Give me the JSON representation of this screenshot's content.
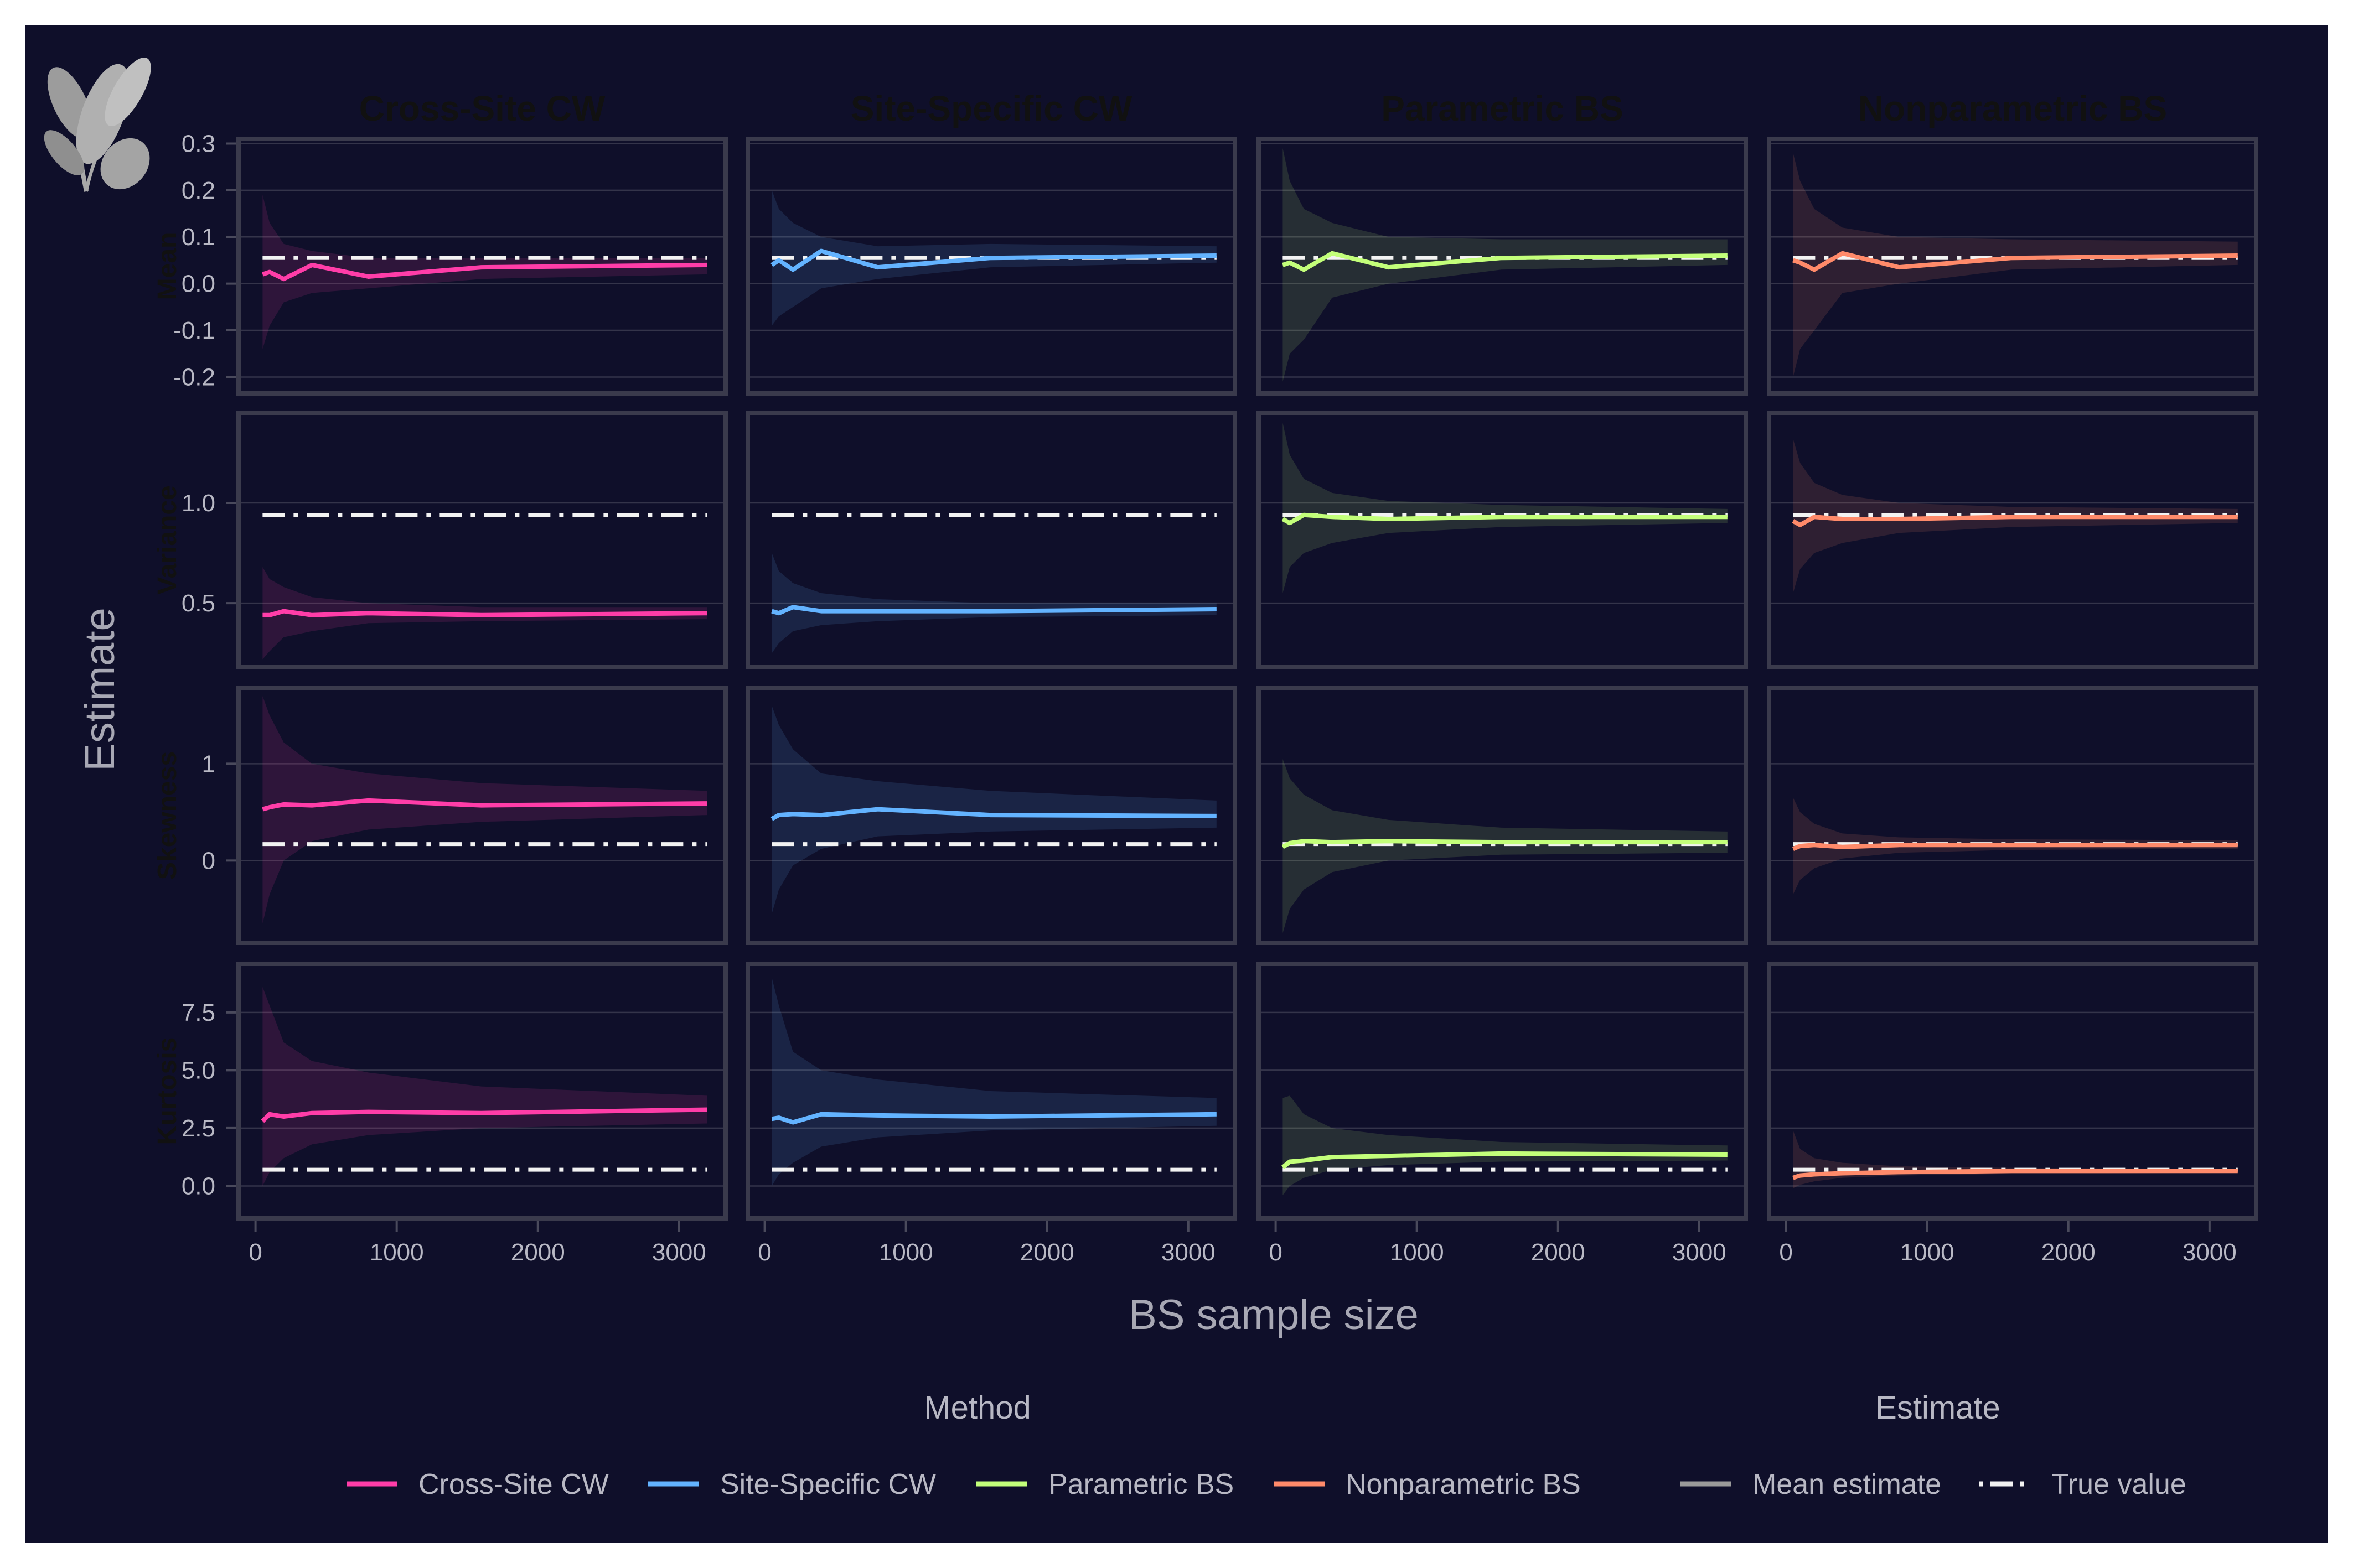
{
  "chart_data": {
    "type": "line",
    "layout": "facet-grid 4x4",
    "xlabel": "BS sample size",
    "ylabel": "Estimate",
    "x": [
      50,
      100,
      200,
      400,
      800,
      1600,
      3200
    ],
    "x_ticks": [
      0,
      1000,
      2000,
      3000
    ],
    "xlim": [
      -120,
      3330
    ],
    "columns": [
      "Cross-Site CW",
      "Site-Specific CW",
      "Parametric BS",
      "Nonparametric BS"
    ],
    "rows": [
      {
        "name": "Mean",
        "ylim": [
          -0.235,
          0.31
        ],
        "y_ticks": [
          -0.2,
          -0.1,
          0.0,
          0.1,
          0.2,
          0.3
        ],
        "y_tick_labels": [
          "-0.2",
          "-0.1",
          "0.0",
          "0.1",
          "0.2",
          "0.3"
        ],
        "true_value": 0.055,
        "series": [
          {
            "mean": [
              0.02,
              0.025,
              0.01,
              0.04,
              0.015,
              0.035,
              0.04
            ],
            "lower": [
              -0.14,
              -0.09,
              -0.04,
              -0.02,
              -0.01,
              0.01,
              0.02
            ],
            "upper": [
              0.19,
              0.13,
              0.085,
              0.07,
              0.055,
              0.055,
              0.055
            ]
          },
          {
            "mean": [
              0.04,
              0.05,
              0.03,
              0.07,
              0.035,
              0.055,
              0.06
            ],
            "lower": [
              -0.09,
              -0.07,
              -0.05,
              -0.01,
              0.01,
              0.035,
              0.045
            ],
            "upper": [
              0.2,
              0.16,
              0.13,
              0.1,
              0.08,
              0.085,
              0.08
            ]
          },
          {
            "mean": [
              0.04,
              0.045,
              0.03,
              0.065,
              0.035,
              0.055,
              0.06
            ],
            "lower": [
              -0.21,
              -0.15,
              -0.12,
              -0.03,
              0.0,
              0.03,
              0.04
            ],
            "upper": [
              0.29,
              0.22,
              0.16,
              0.13,
              0.1,
              0.095,
              0.095
            ]
          },
          {
            "mean": [
              0.05,
              0.045,
              0.03,
              0.065,
              0.035,
              0.055,
              0.06
            ],
            "lower": [
              -0.2,
              -0.14,
              -0.1,
              -0.02,
              0.0,
              0.03,
              0.04
            ],
            "upper": [
              0.28,
              0.22,
              0.16,
              0.12,
              0.1,
              0.095,
              0.09
            ]
          }
        ]
      },
      {
        "name": "Variance",
        "ylim": [
          0.18,
          1.45
        ],
        "y_ticks": [
          0.5,
          1.0
        ],
        "y_tick_labels": [
          "0.5",
          "1.0"
        ],
        "true_value": 0.94,
        "series": [
          {
            "mean": [
              0.44,
              0.44,
              0.46,
              0.44,
              0.45,
              0.44,
              0.45
            ],
            "lower": [
              0.22,
              0.26,
              0.33,
              0.36,
              0.4,
              0.41,
              0.42
            ],
            "upper": [
              0.68,
              0.62,
              0.58,
              0.53,
              0.5,
              0.48,
              0.48
            ]
          },
          {
            "mean": [
              0.46,
              0.45,
              0.48,
              0.46,
              0.46,
              0.46,
              0.47
            ],
            "lower": [
              0.25,
              0.3,
              0.36,
              0.39,
              0.41,
              0.43,
              0.44
            ],
            "upper": [
              0.75,
              0.66,
              0.6,
              0.55,
              0.52,
              0.5,
              0.5
            ]
          },
          {
            "mean": [
              0.92,
              0.9,
              0.94,
              0.93,
              0.92,
              0.93,
              0.93
            ],
            "lower": [
              0.55,
              0.68,
              0.75,
              0.8,
              0.85,
              0.88,
              0.9
            ],
            "upper": [
              1.4,
              1.24,
              1.12,
              1.05,
              1.01,
              0.99,
              0.97
            ]
          },
          {
            "mean": [
              0.91,
              0.89,
              0.93,
              0.92,
              0.92,
              0.93,
              0.93
            ],
            "lower": [
              0.55,
              0.67,
              0.75,
              0.8,
              0.85,
              0.88,
              0.9
            ],
            "upper": [
              1.32,
              1.2,
              1.1,
              1.04,
              1.0,
              0.98,
              0.97
            ]
          }
        ]
      },
      {
        "name": "Skewness",
        "ylim": [
          -0.85,
          1.78
        ],
        "y_ticks": [
          0,
          1
        ],
        "y_tick_labels": [
          "0",
          "1"
        ],
        "true_value": 0.17,
        "series": [
          {
            "mean": [
              0.53,
              0.55,
              0.58,
              0.57,
              0.62,
              0.57,
              0.59
            ],
            "lower": [
              -0.65,
              -0.35,
              0.0,
              0.2,
              0.32,
              0.4,
              0.47
            ],
            "upper": [
              1.7,
              1.5,
              1.22,
              1.0,
              0.9,
              0.8,
              0.72
            ]
          },
          {
            "mean": [
              0.43,
              0.47,
              0.48,
              0.47,
              0.53,
              0.47,
              0.46
            ],
            "lower": [
              -0.55,
              -0.3,
              -0.05,
              0.12,
              0.25,
              0.3,
              0.34
            ],
            "upper": [
              1.6,
              1.4,
              1.15,
              0.9,
              0.82,
              0.72,
              0.62
            ]
          },
          {
            "mean": [
              0.14,
              0.18,
              0.2,
              0.19,
              0.2,
              0.19,
              0.19
            ],
            "lower": [
              -0.75,
              -0.5,
              -0.3,
              -0.12,
              0.0,
              0.06,
              0.08
            ],
            "upper": [
              1.05,
              0.85,
              0.68,
              0.52,
              0.42,
              0.34,
              0.3
            ]
          },
          {
            "mean": [
              0.12,
              0.15,
              0.16,
              0.14,
              0.16,
              0.16,
              0.16
            ],
            "lower": [
              -0.35,
              -0.2,
              -0.08,
              0.02,
              0.08,
              0.11,
              0.12
            ],
            "upper": [
              0.65,
              0.5,
              0.38,
              0.28,
              0.24,
              0.22,
              0.21
            ]
          }
        ]
      },
      {
        "name": "Kurtosis",
        "ylim": [
          -1.4,
          9.6
        ],
        "y_ticks": [
          0,
          2.5,
          5,
          7.5
        ],
        "y_tick_labels": [
          "0.0",
          "2.5",
          "5.0",
          "7.5"
        ],
        "true_value": 0.7,
        "series": [
          {
            "mean": [
              2.8,
              3.1,
              3.0,
              3.15,
              3.2,
              3.15,
              3.3
            ],
            "lower": [
              0.0,
              0.6,
              1.2,
              1.8,
              2.2,
              2.5,
              2.7
            ],
            "upper": [
              8.6,
              7.8,
              6.2,
              5.4,
              4.9,
              4.3,
              3.9
            ]
          },
          {
            "mean": [
              2.9,
              2.95,
              2.75,
              3.1,
              3.05,
              3.0,
              3.1
            ],
            "lower": [
              0.0,
              0.5,
              1.0,
              1.7,
              2.1,
              2.4,
              2.6
            ],
            "upper": [
              9.0,
              7.8,
              5.8,
              5.0,
              4.6,
              4.1,
              3.8
            ]
          },
          {
            "mean": [
              0.8,
              1.05,
              1.1,
              1.25,
              1.3,
              1.4,
              1.35
            ],
            "lower": [
              -0.4,
              0.0,
              0.35,
              0.7,
              0.9,
              1.05,
              1.1
            ],
            "upper": [
              3.8,
              3.9,
              3.1,
              2.5,
              2.2,
              1.9,
              1.75
            ]
          },
          {
            "mean": [
              0.35,
              0.45,
              0.5,
              0.55,
              0.6,
              0.65,
              0.65
            ],
            "lower": [
              -0.1,
              0.05,
              0.2,
              0.35,
              0.45,
              0.52,
              0.56
            ],
            "upper": [
              2.4,
              1.6,
              1.2,
              1.0,
              0.85,
              0.78,
              0.74
            ]
          }
        ]
      }
    ],
    "colors": {
      "Cross-Site CW": "#ff3da8",
      "Site-Specific CW": "#63b3ff",
      "Parametric BS": "#c3ff7a",
      "Nonparametric BS": "#ff8a6a"
    },
    "true_color": "#f2f2f2",
    "legend": {
      "position": "bottom",
      "method_title": "Method",
      "method_items": [
        "Cross-Site CW",
        "Site-Specific CW",
        "Parametric BS",
        "Nonparametric BS"
      ],
      "estimate_title": "Estimate",
      "estimate_items": [
        "Mean estimate",
        "True value"
      ]
    }
  }
}
